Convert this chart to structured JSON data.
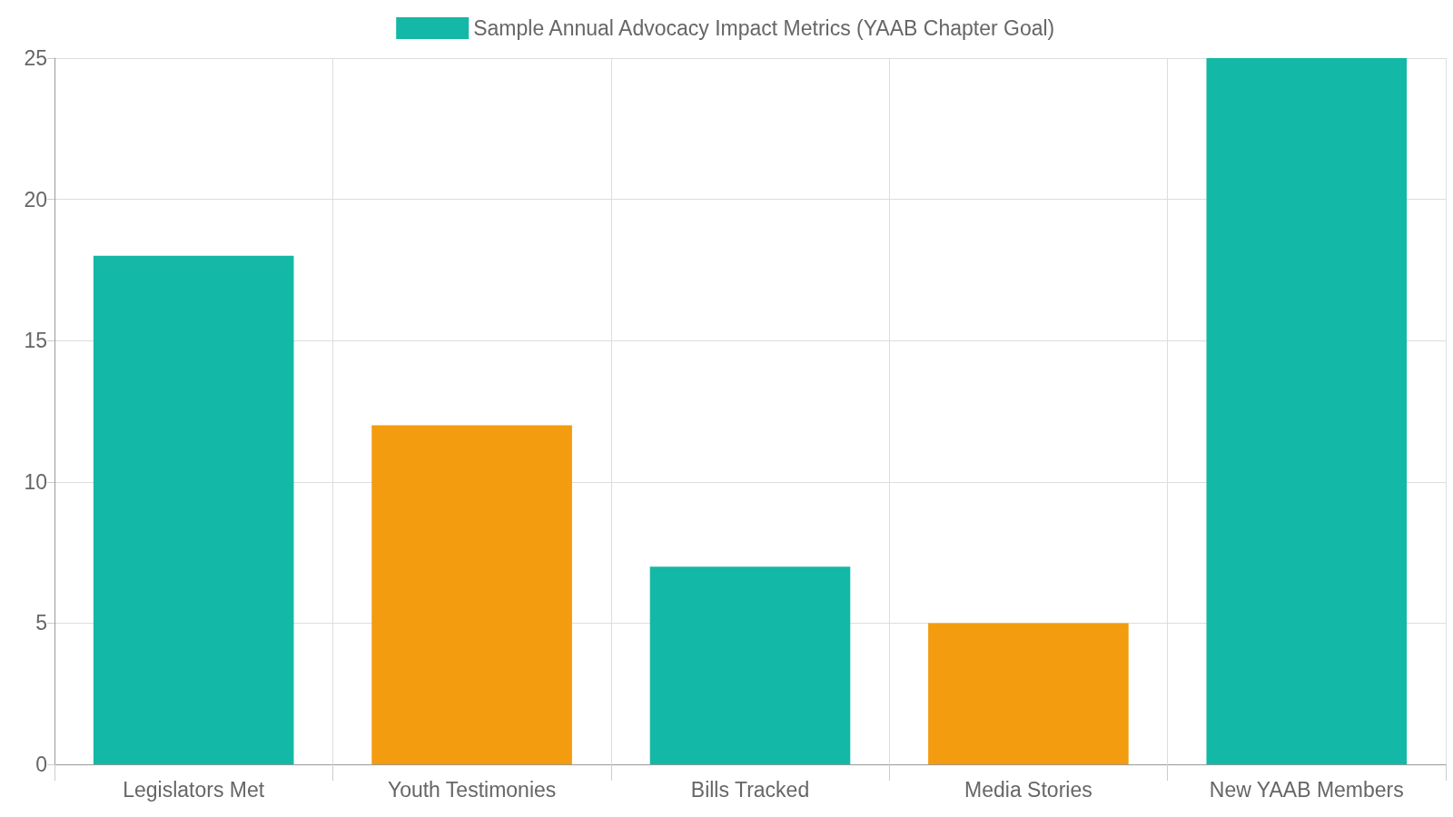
{
  "chart_data": {
    "type": "bar",
    "categories": [
      "Legislators Met",
      "Youth Testimonies",
      "Bills Tracked",
      "Media Stories",
      "New YAAB Members"
    ],
    "series": [
      {
        "name": "Sample Annual Advocacy Impact Metrics (YAAB Chapter Goal)",
        "color": "#14b8a6",
        "colors": [
          "#14b8a6",
          "#f39c0f",
          "#14b8a6",
          "#f39c0f",
          "#14b8a6"
        ],
        "values": [
          18,
          12,
          7,
          5,
          25
        ]
      }
    ],
    "ylim": [
      0,
      25
    ],
    "yticks": [
      0,
      5,
      10,
      15,
      20,
      25
    ],
    "grid": true,
    "legend": "top"
  }
}
